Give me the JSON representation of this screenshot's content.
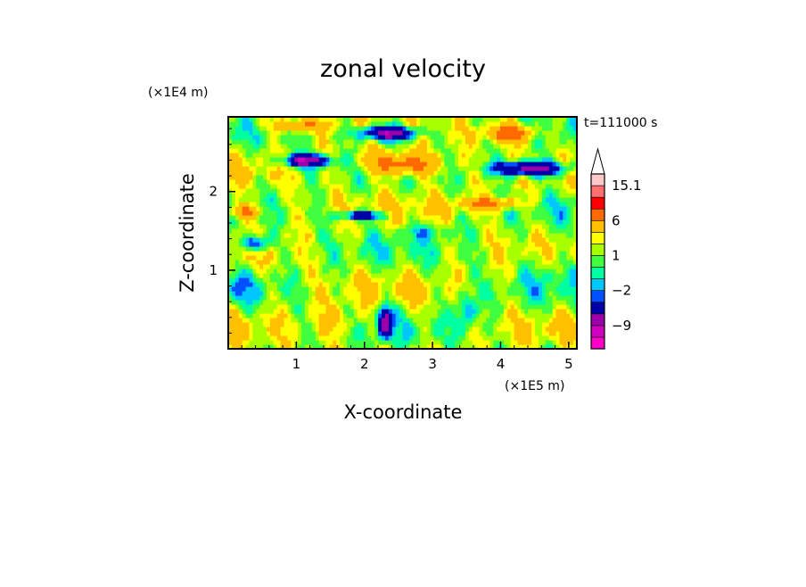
{
  "chart_data": {
    "type": "heatmap",
    "title": "zonal velocity",
    "xlabel": "X-coordinate",
    "ylabel": "Z-coordinate",
    "x_unit": "(×1E5 m)",
    "y_unit": "(×1E4 m)",
    "time_label": "t=111000 s",
    "xlim": [
      0,
      5.12
    ],
    "ylim": [
      0,
      2.95
    ],
    "x_ticks": [
      1,
      2,
      3,
      4,
      5
    ],
    "x_tick_labels": [
      "1",
      "2",
      "3",
      "4",
      "5"
    ],
    "y_ticks": [
      1,
      2
    ],
    "y_tick_labels": [
      "1",
      "2"
    ],
    "colorbar": {
      "levels": [
        -15,
        -12,
        -9,
        -6,
        -3,
        -2,
        -1,
        0,
        1,
        2,
        3,
        6,
        9,
        12,
        15.1
      ],
      "colors": [
        "#ff00c8",
        "#d000c0",
        "#9c00a8",
        "#0000a8",
        "#0050ff",
        "#00c8ff",
        "#00ffa0",
        "#40ff40",
        "#a8ff00",
        "#ffff00",
        "#ffc000",
        "#ff6a00",
        "#ff0000",
        "#ff7070",
        "#ffc8c8"
      ],
      "labels": [
        {
          "value": 15.1,
          "text": "15.1"
        },
        {
          "value": 6,
          "text": "6"
        },
        {
          "value": 1,
          "text": "1"
        },
        {
          "value": -2,
          "text": "−2"
        },
        {
          "value": -9,
          "text": "−9"
        }
      ]
    },
    "features": [
      {
        "x": 2.35,
        "z": 2.75,
        "sx": 0.45,
        "sz": 0.1,
        "v": -11
      },
      {
        "x": 1.15,
        "z": 2.4,
        "sx": 0.35,
        "sz": 0.08,
        "v": -10
      },
      {
        "x": 4.45,
        "z": 2.3,
        "sx": 0.55,
        "sz": 0.1,
        "v": -11
      },
      {
        "x": 1.95,
        "z": 1.7,
        "sx": 0.35,
        "sz": 0.06,
        "v": -8
      },
      {
        "x": 0.4,
        "z": 1.35,
        "sx": 0.2,
        "sz": 0.1,
        "v": -7
      },
      {
        "x": 2.3,
        "z": 0.35,
        "sx": 0.1,
        "sz": 0.2,
        "v": -9
      },
      {
        "x": 3.5,
        "z": 0.5,
        "sx": 0.15,
        "sz": 0.25,
        "v": -4
      },
      {
        "x": 2.55,
        "z": 2.35,
        "sx": 0.55,
        "sz": 0.14,
        "v": 8
      },
      {
        "x": 4.15,
        "z": 2.75,
        "sx": 0.4,
        "sz": 0.12,
        "v": 7
      },
      {
        "x": 1.0,
        "z": 2.85,
        "sx": 0.4,
        "sz": 0.08,
        "v": 5
      },
      {
        "x": 0.25,
        "z": 1.75,
        "sx": 0.25,
        "sz": 0.1,
        "v": 6
      },
      {
        "x": 3.85,
        "z": 1.85,
        "sx": 0.45,
        "sz": 0.08,
        "v": 6
      },
      {
        "x": 2.9,
        "z": 1.5,
        "sx": 0.55,
        "sz": 0.1,
        "v": -2
      },
      {
        "x": 4.7,
        "z": 1.1,
        "sx": 0.35,
        "sz": 0.35,
        "v": -1.5
      },
      {
        "x": 1.6,
        "z": 0.35,
        "sx": 0.35,
        "sz": 0.2,
        "v": 2.5
      },
      {
        "x": 0.2,
        "z": 0.8,
        "sx": 0.35,
        "sz": 0.2,
        "v": -1.5
      }
    ]
  }
}
